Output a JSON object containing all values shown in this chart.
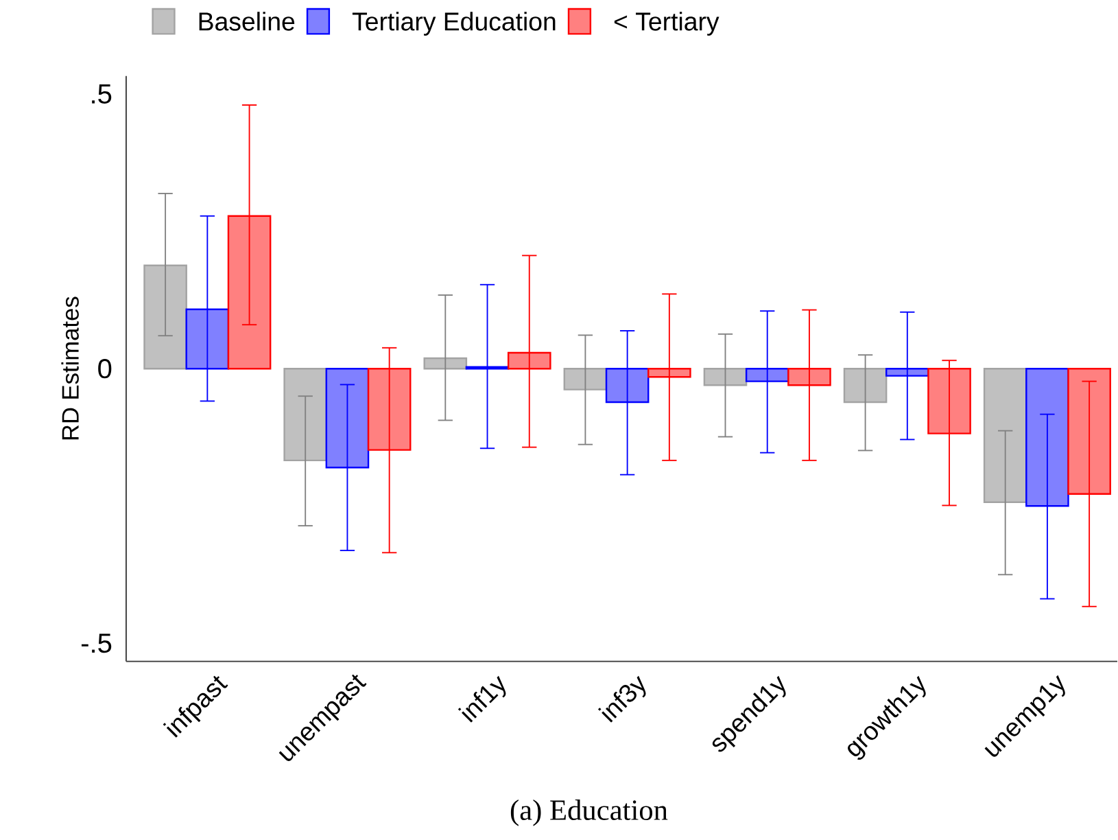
{
  "chart_data": {
    "type": "bar",
    "ylabel": "RD Estimates",
    "categories": [
      "infpast",
      "unempast",
      "inf1y",
      "inf3y",
      "spend1y",
      "growth1y",
      "unemp1y"
    ],
    "series": [
      {
        "name": "Baseline",
        "color": "#c0c0c0",
        "values": [
          0.188,
          -0.167,
          0.019,
          -0.038,
          -0.03,
          -0.061,
          -0.243
        ],
        "errors": [
          [
            0.06,
            0.319
          ],
          [
            -0.286,
            -0.05
          ],
          [
            -0.094,
            0.134
          ],
          [
            -0.138,
            0.061
          ],
          [
            -0.124,
            0.063
          ],
          [
            -0.149,
            0.025
          ],
          [
            -0.375,
            -0.113
          ]
        ]
      },
      {
        "name": "Tertiary Education",
        "color": "#8080ff",
        "values": [
          0.108,
          -0.18,
          0.003,
          -0.061,
          -0.023,
          -0.013,
          -0.25
        ],
        "errors": [
          [
            -0.059,
            0.278
          ],
          [
            -0.331,
            -0.029
          ],
          [
            -0.145,
            0.153
          ],
          [
            -0.193,
            0.069
          ],
          [
            -0.153,
            0.105
          ],
          [
            -0.129,
            0.103
          ],
          [
            -0.419,
            -0.083
          ]
        ]
      },
      {
        "name": "< Tertiary",
        "color": "#ff8080",
        "values": [
          0.278,
          -0.148,
          0.029,
          -0.015,
          -0.03,
          -0.118,
          -0.228
        ],
        "errors": [
          [
            0.08,
            0.48
          ],
          [
            -0.335,
            0.038
          ],
          [
            -0.143,
            0.206
          ],
          [
            -0.167,
            0.136
          ],
          [
            -0.167,
            0.107
          ],
          [
            -0.249,
            0.015
          ],
          [
            -0.433,
            -0.023
          ]
        ]
      }
    ],
    "ylim": [
      -0.533,
      0.533
    ],
    "yticks": [
      {
        "value": -0.5,
        "label": "-.5"
      },
      0,
      {
        "value": 0.5,
        "label": ".5"
      }
    ],
    "legend": "top",
    "grid": false,
    "annotations": [
      "(a) Education"
    ]
  }
}
